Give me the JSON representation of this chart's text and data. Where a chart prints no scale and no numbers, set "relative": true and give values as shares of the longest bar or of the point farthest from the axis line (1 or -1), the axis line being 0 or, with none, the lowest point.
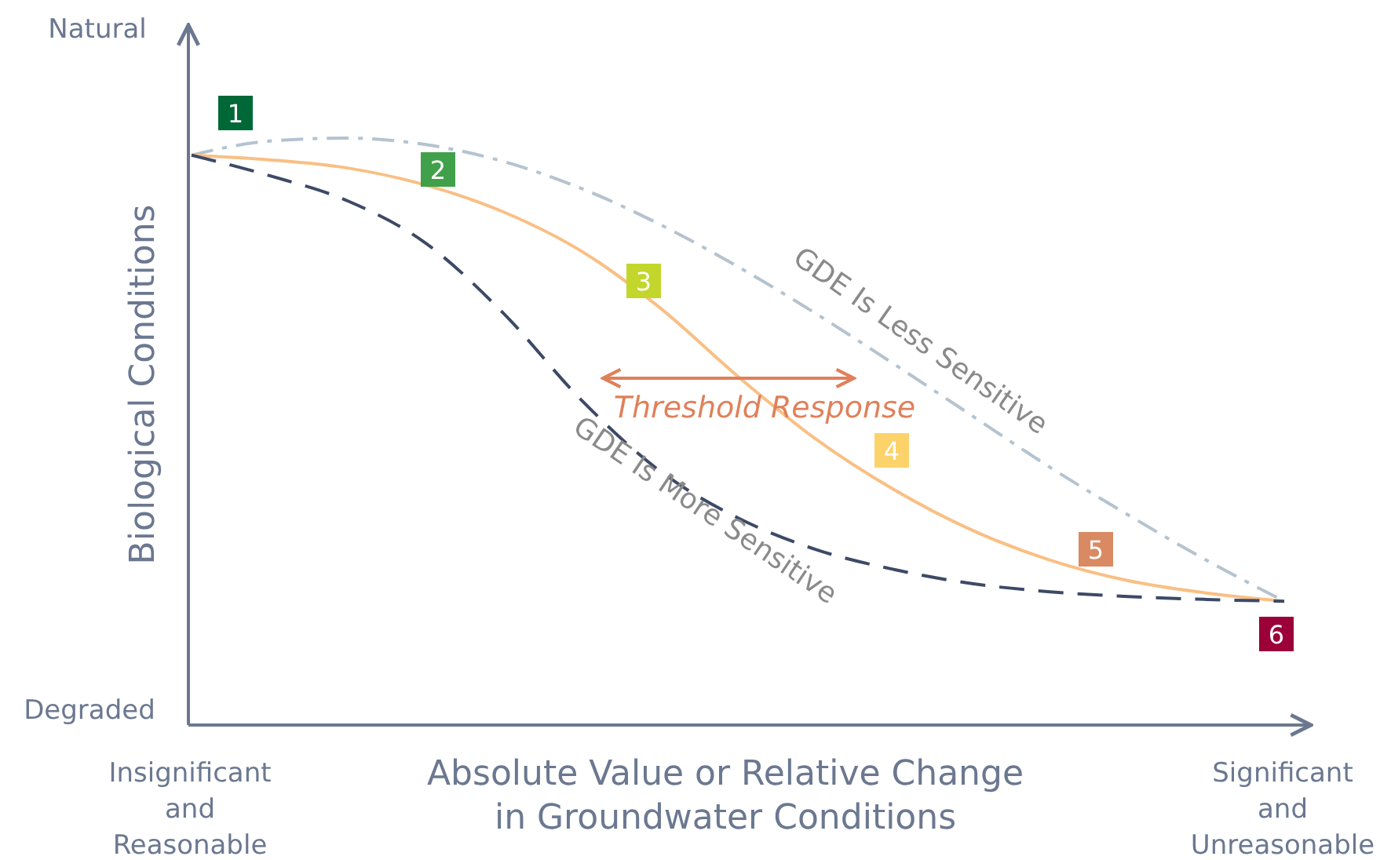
{
  "chart_data": {
    "type": "line",
    "relative": true,
    "ylabel": "Biological Conditions",
    "xlabel": "Absolute Value or Relative Change\nin Groundwater Conditions",
    "categories": [
      null,
      null,
      null,
      null,
      null,
      null,
      null,
      null,
      null,
      null,
      null,
      null,
      null,
      null,
      null
    ],
    "series": [
      {
        "name": "GDE Is Less Sensitive",
        "color": "#b4c3cf",
        "line_style": "dashdot",
        "values": [
          0.971,
          0.995,
          1,
          0.989,
          0.96,
          0.914,
          0.853,
          0.781,
          0.701,
          0.615,
          0.527,
          0.439,
          0.358,
          0.281,
          0.211
        ]
      },
      {
        "color": "#f9bf84",
        "line_style": "solid",
        "values": [
          0.971,
          0.963,
          0.949,
          0.92,
          0.874,
          0.807,
          0.711,
          0.594,
          0.487,
          0.401,
          0.332,
          0.281,
          0.246,
          0.225,
          0.211
        ]
      },
      {
        "name": "GDE Is More Sensitive",
        "color": "#3d4a66",
        "line_style": "dashed",
        "values": [
          0.971,
          0.936,
          0.893,
          0.821,
          0.701,
          0.553,
          0.433,
          0.353,
          0.299,
          0.265,
          0.241,
          0.227,
          0.219,
          0.214,
          0.211
        ]
      }
    ],
    "annotations": [
      "Natural",
      "Degraded",
      "Insignificant\nand\nReasonable",
      "Significant\nand\nUnreasonable",
      "Threshold Response",
      "1",
      "2",
      "3",
      "4",
      "5",
      "6"
    ]
  }
}
